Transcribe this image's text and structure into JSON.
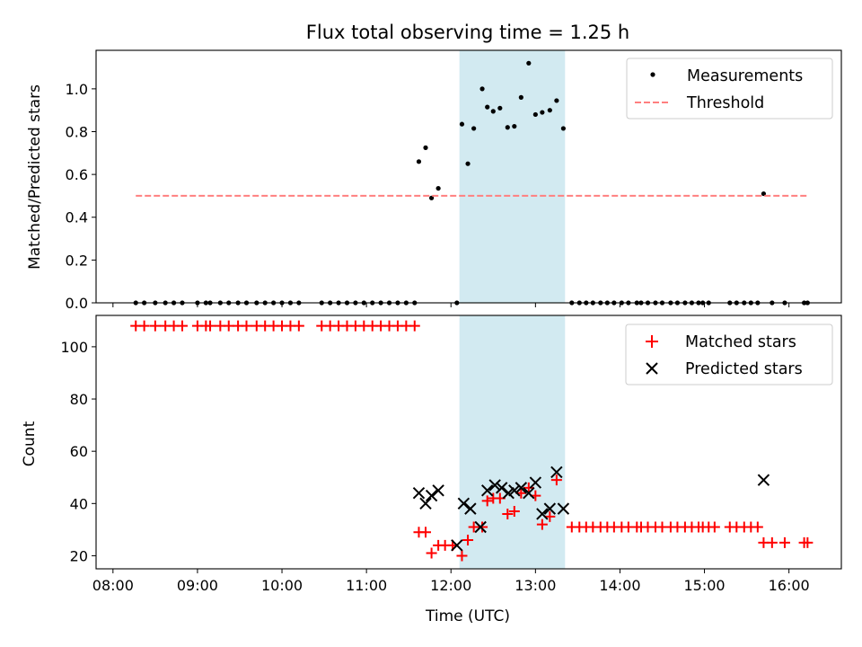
{
  "chart_data": {
    "type": "scatter",
    "title": "Flux total observing time = 1.25 h",
    "xlabel": "Time (UTC)",
    "x_unit": "hours UTC",
    "xlim": [
      7.8,
      16.62
    ],
    "x_ticks": [
      8,
      9,
      10,
      11,
      12,
      13,
      14,
      15,
      16
    ],
    "x_tick_labels": [
      "08:00",
      "09:00",
      "10:00",
      "11:00",
      "12:00",
      "13:00",
      "14:00",
      "15:00",
      "16:00"
    ],
    "shaded_interval": {
      "x_start": 12.1,
      "x_end": 13.35,
      "color": "#add8e6"
    },
    "panels": [
      {
        "ylabel": "Matched/Predicted stars",
        "ylim": [
          0,
          1.18
        ],
        "y_ticks": [
          0.0,
          0.2,
          0.4,
          0.6,
          0.8,
          1.0
        ],
        "y_tick_labels": [
          "0.0",
          "0.2",
          "0.4",
          "0.6",
          "0.8",
          "1.0"
        ],
        "legend": {
          "position": "upper right",
          "entries": [
            "Measurements",
            "Threshold"
          ]
        },
        "series": [
          {
            "name": "Measurements",
            "marker": "dot",
            "color": "#000000",
            "points": [
              [
                8.27,
                0
              ],
              [
                8.37,
                0
              ],
              [
                8.5,
                0
              ],
              [
                8.62,
                0
              ],
              [
                8.72,
                0
              ],
              [
                8.82,
                0
              ],
              [
                9.0,
                0
              ],
              [
                9.1,
                0
              ],
              [
                9.15,
                0
              ],
              [
                9.27,
                0
              ],
              [
                9.37,
                0
              ],
              [
                9.48,
                0
              ],
              [
                9.58,
                0
              ],
              [
                9.7,
                0
              ],
              [
                9.8,
                0
              ],
              [
                9.9,
                0
              ],
              [
                10.0,
                0
              ],
              [
                10.1,
                0
              ],
              [
                10.2,
                0
              ],
              [
                10.47,
                0
              ],
              [
                10.57,
                0
              ],
              [
                10.67,
                0
              ],
              [
                10.77,
                0
              ],
              [
                10.87,
                0
              ],
              [
                10.97,
                0
              ],
              [
                11.07,
                0
              ],
              [
                11.17,
                0
              ],
              [
                11.27,
                0
              ],
              [
                11.37,
                0
              ],
              [
                11.47,
                0
              ],
              [
                11.57,
                0
              ],
              [
                11.62,
                0.66
              ],
              [
                11.7,
                0.725
              ],
              [
                11.77,
                0.49
              ],
              [
                11.85,
                0.535
              ],
              [
                12.07,
                0
              ],
              [
                12.13,
                0.835
              ],
              [
                12.2,
                0.65
              ],
              [
                12.27,
                0.815
              ],
              [
                12.37,
                1.0
              ],
              [
                12.43,
                0.915
              ],
              [
                12.5,
                0.895
              ],
              [
                12.58,
                0.91
              ],
              [
                12.67,
                0.82
              ],
              [
                12.75,
                0.825
              ],
              [
                12.83,
                0.96
              ],
              [
                12.92,
                1.12
              ],
              [
                13.0,
                0.88
              ],
              [
                13.08,
                0.89
              ],
              [
                13.17,
                0.9
              ],
              [
                13.25,
                0.945
              ],
              [
                13.33,
                0.815
              ],
              [
                13.43,
                0
              ],
              [
                13.52,
                0
              ],
              [
                13.6,
                0
              ],
              [
                13.68,
                0
              ],
              [
                13.77,
                0
              ],
              [
                13.85,
                0
              ],
              [
                13.93,
                0
              ],
              [
                14.02,
                0
              ],
              [
                14.1,
                0
              ],
              [
                14.2,
                0
              ],
              [
                14.25,
                0
              ],
              [
                14.33,
                0
              ],
              [
                14.42,
                0
              ],
              [
                14.5,
                0
              ],
              [
                14.6,
                0
              ],
              [
                14.68,
                0
              ],
              [
                14.77,
                0
              ],
              [
                14.85,
                0
              ],
              [
                14.93,
                0
              ],
              [
                14.98,
                0
              ],
              [
                15.05,
                0
              ],
              [
                15.3,
                0
              ],
              [
                15.38,
                0
              ],
              [
                15.47,
                0
              ],
              [
                15.55,
                0
              ],
              [
                15.63,
                0
              ],
              [
                15.7,
                0.51
              ],
              [
                15.8,
                0
              ],
              [
                15.95,
                0
              ],
              [
                16.18,
                0
              ],
              [
                16.22,
                0
              ]
            ]
          },
          {
            "name": "Threshold",
            "style": "dashed",
            "color": "#ff7f7f",
            "points": [
              [
                8.27,
                0.5
              ],
              [
                16.22,
                0.5
              ]
            ]
          }
        ]
      },
      {
        "ylabel": "Count",
        "ylim": [
          15,
          112
        ],
        "y_ticks": [
          20,
          40,
          60,
          80,
          100
        ],
        "y_tick_labels": [
          "20",
          "40",
          "60",
          "80",
          "100"
        ],
        "legend": {
          "position": "upper right",
          "entries": [
            "Matched stars",
            "Predicted stars"
          ]
        },
        "series": [
          {
            "name": "Matched stars",
            "marker": "plus",
            "color": "#ff0000",
            "points": [
              [
                8.27,
                108
              ],
              [
                8.37,
                108
              ],
              [
                8.5,
                108
              ],
              [
                8.62,
                108
              ],
              [
                8.72,
                108
              ],
              [
                8.82,
                108
              ],
              [
                9.0,
                108
              ],
              [
                9.1,
                108
              ],
              [
                9.15,
                108
              ],
              [
                9.27,
                108
              ],
              [
                9.37,
                108
              ],
              [
                9.48,
                108
              ],
              [
                9.58,
                108
              ],
              [
                9.7,
                108
              ],
              [
                9.8,
                108
              ],
              [
                9.9,
                108
              ],
              [
                10.0,
                108
              ],
              [
                10.1,
                108
              ],
              [
                10.2,
                108
              ],
              [
                10.47,
                108
              ],
              [
                10.57,
                108
              ],
              [
                10.67,
                108
              ],
              [
                10.77,
                108
              ],
              [
                10.87,
                108
              ],
              [
                10.97,
                108
              ],
              [
                11.07,
                108
              ],
              [
                11.17,
                108
              ],
              [
                11.27,
                108
              ],
              [
                11.37,
                108
              ],
              [
                11.47,
                108
              ],
              [
                11.57,
                108
              ],
              [
                11.62,
                29
              ],
              [
                11.7,
                29
              ],
              [
                11.77,
                21
              ],
              [
                11.85,
                24
              ],
              [
                11.93,
                24
              ],
              [
                12.02,
                24
              ],
              [
                12.13,
                20
              ],
              [
                12.2,
                26
              ],
              [
                12.27,
                31
              ],
              [
                12.37,
                31
              ],
              [
                12.43,
                41
              ],
              [
                12.5,
                42
              ],
              [
                12.58,
                42
              ],
              [
                12.67,
                36
              ],
              [
                12.75,
                37
              ],
              [
                12.83,
                44
              ],
              [
                12.92,
                46
              ],
              [
                13.0,
                43
              ],
              [
                13.08,
                32
              ],
              [
                13.17,
                35
              ],
              [
                13.25,
                49
              ],
              [
                13.43,
                31
              ],
              [
                13.52,
                31
              ],
              [
                13.6,
                31
              ],
              [
                13.68,
                31
              ],
              [
                13.77,
                31
              ],
              [
                13.85,
                31
              ],
              [
                13.93,
                31
              ],
              [
                14.02,
                31
              ],
              [
                14.1,
                31
              ],
              [
                14.2,
                31
              ],
              [
                14.25,
                31
              ],
              [
                14.33,
                31
              ],
              [
                14.42,
                31
              ],
              [
                14.5,
                31
              ],
              [
                14.6,
                31
              ],
              [
                14.68,
                31
              ],
              [
                14.77,
                31
              ],
              [
                14.85,
                31
              ],
              [
                14.93,
                31
              ],
              [
                14.98,
                31
              ],
              [
                15.05,
                31
              ],
              [
                15.12,
                31
              ],
              [
                15.3,
                31
              ],
              [
                15.38,
                31
              ],
              [
                15.47,
                31
              ],
              [
                15.55,
                31
              ],
              [
                15.63,
                31
              ],
              [
                15.7,
                25
              ],
              [
                15.8,
                25
              ],
              [
                15.95,
                25
              ],
              [
                16.18,
                25
              ],
              [
                16.22,
                25
              ]
            ]
          },
          {
            "name": "Predicted stars",
            "marker": "x",
            "color": "#000000",
            "points": [
              [
                11.62,
                44
              ],
              [
                11.7,
                40
              ],
              [
                11.77,
                43
              ],
              [
                11.85,
                45
              ],
              [
                12.07,
                24
              ],
              [
                12.15,
                40
              ],
              [
                12.23,
                38
              ],
              [
                12.35,
                31
              ],
              [
                12.43,
                45
              ],
              [
                12.52,
                47
              ],
              [
                12.6,
                46
              ],
              [
                12.68,
                44
              ],
              [
                12.75,
                45
              ],
              [
                12.83,
                46
              ],
              [
                12.92,
                44
              ],
              [
                13.0,
                48
              ],
              [
                13.08,
                36
              ],
              [
                13.17,
                38
              ],
              [
                13.25,
                52
              ],
              [
                13.33,
                38
              ],
              [
                15.7,
                49
              ]
            ]
          }
        ]
      }
    ]
  }
}
